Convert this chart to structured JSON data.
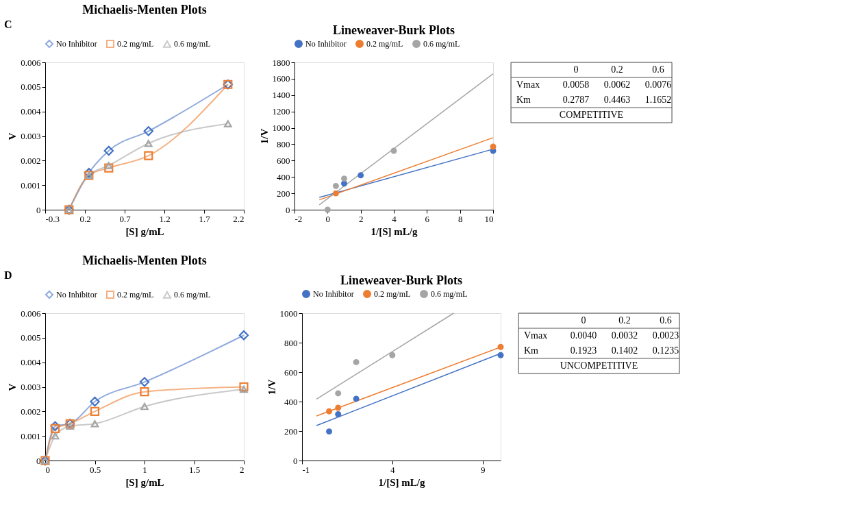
{
  "chart_data": [
    {
      "type": "line",
      "title": "Michaelis-Menten Plots",
      "xlabel": "[S] g/mL",
      "ylabel": "V",
      "annotations": [
        "C"
      ],
      "legend": "top",
      "grid": false,
      "x": [
        0,
        0.25,
        0.5,
        1,
        2
      ],
      "xlim": [
        -0.3,
        2.2
      ],
      "xticks": [
        -0.3,
        0.2,
        0.7,
        1.2,
        1.7,
        2.2
      ],
      "ylim": [
        0,
        0.006
      ],
      "yticks": [
        0,
        0.001,
        0.002,
        0.003,
        0.004,
        0.005,
        0.006
      ],
      "series": [
        {
          "name": "No Inhibitor",
          "color": "#4472c4",
          "marker": "diamond",
          "values": [
            0,
            0.0015,
            0.0024,
            0.0032,
            0.0051
          ]
        },
        {
          "name": "0.2 mg/mL",
          "color": "#ed7d31",
          "marker": "square",
          "values": [
            0,
            0.0014,
            0.0017,
            0.0022,
            0.0051
          ]
        },
        {
          "name": "0.6 mg/mL",
          "color": "#a5a5a5",
          "marker": "triangle",
          "values": [
            0,
            0.0014,
            0.0018,
            0.0027,
            0.0035
          ]
        }
      ]
    },
    {
      "type": "scatter",
      "title": "Lineweaver-Burk Plots",
      "xlabel": "1/[S] mL/g",
      "ylabel": "1/V",
      "legend": "top",
      "grid": false,
      "xlim": [
        -2,
        10
      ],
      "xticks": [
        -2,
        0,
        2,
        4,
        6,
        8,
        10
      ],
      "ylim": [
        0,
        1800
      ],
      "yticks": [
        0,
        200,
        400,
        600,
        800,
        1000,
        1200,
        1400,
        1600,
        1800
      ],
      "series": [
        {
          "name": "No Inhibitor",
          "color": "#4472c4",
          "marker": "circle",
          "x": [
            1,
            2,
            10
          ],
          "values": [
            320,
            420,
            720
          ]
        },
        {
          "name": "0.2 mg/mL",
          "color": "#ed7d31",
          "marker": "circle",
          "x": [
            0.5,
            10
          ],
          "values": [
            200,
            770
          ]
        },
        {
          "name": "0.6 mg/mL",
          "color": "#a5a5a5",
          "marker": "circle",
          "x": [
            0,
            0.5,
            1,
            4
          ],
          "values": [
            0,
            290,
            380,
            720
          ]
        },
        {
          "type": "line",
          "color": "#4472c4",
          "x": [
            -0.5,
            10
          ],
          "values": [
            150,
            740
          ]
        },
        {
          "type": "line",
          "color": "#ed7d31",
          "x": [
            -0.5,
            10
          ],
          "values": [
            120,
            880
          ]
        },
        {
          "type": "line",
          "color": "#a5a5a5",
          "x": [
            -0.5,
            10
          ],
          "values": [
            60,
            1660
          ]
        }
      ]
    },
    {
      "type": "other",
      "categories": [
        "0",
        "0.2",
        "0.6"
      ],
      "y_categories": [
        "Vmax",
        "Km"
      ],
      "cell_labels": [
        [
          "0.0058",
          "0.0062",
          "0.0076"
        ],
        [
          "0.2787",
          "0.4463",
          "1.1652"
        ]
      ],
      "annotations": [
        "COMPETITIVE"
      ]
    },
    {
      "type": "line",
      "title": "Michaelis-Menten Plots",
      "xlabel": "[S] g/mL",
      "ylabel": "V",
      "annotations": [
        "D"
      ],
      "legend": "top",
      "grid": false,
      "x": [
        0,
        0.1,
        0.25,
        0.5,
        1,
        2
      ],
      "xlim": [
        0,
        2
      ],
      "xticks": [
        0,
        0.5,
        1,
        1.5,
        2
      ],
      "ylim": [
        0,
        0.006
      ],
      "yticks": [
        0,
        0.001,
        0.002,
        0.003,
        0.004,
        0.005,
        0.006
      ],
      "series": [
        {
          "name": "No Inhibitor",
          "color": "#4472c4",
          "marker": "diamond",
          "values": [
            0,
            0.0014,
            0.0015,
            0.0024,
            0.0032,
            0.0051
          ]
        },
        {
          "name": "0.2 mg/mL",
          "color": "#ed7d31",
          "marker": "square",
          "values": [
            0,
            0.0013,
            0.0015,
            0.002,
            0.0028,
            0.003
          ]
        },
        {
          "name": "0.6 mg/mL",
          "color": "#a5a5a5",
          "marker": "triangle",
          "values": [
            0,
            0.001,
            0.0014,
            0.0015,
            0.0022,
            0.0029
          ]
        }
      ]
    },
    {
      "type": "scatter",
      "title": "Lineweaver-Burk Plots",
      "xlabel": "1/[S] mL/g",
      "ylabel": "1/V",
      "legend": "top",
      "grid": false,
      "xlim": [
        -1,
        10
      ],
      "xticks": [
        -1,
        4,
        9
      ],
      "ylim": [
        0,
        1000
      ],
      "yticks": [
        0,
        200,
        400,
        600,
        800,
        1000
      ],
      "series": [
        {
          "name": "No Inhibitor",
          "color": "#4472c4",
          "marker": "circle",
          "x": [
            0.5,
            1,
            2,
            10
          ],
          "values": [
            197,
            314,
            419,
            715
          ]
        },
        {
          "name": "0.2 mg/mL",
          "color": "#ed7d31",
          "marker": "circle",
          "x": [
            0.5,
            1,
            10
          ],
          "values": [
            334,
            358,
            771
          ]
        },
        {
          "name": "0.6 mg/mL",
          "color": "#a5a5a5",
          "marker": "circle",
          "x": [
            1,
            2,
            4
          ],
          "values": [
            456,
            668,
            715
          ]
        },
        {
          "type": "line",
          "color": "#4472c4",
          "x": [
            -0.2,
            10
          ],
          "values": [
            237,
            727
          ]
        },
        {
          "type": "line",
          "color": "#ed7d31",
          "x": [
            -0.2,
            10
          ],
          "values": [
            302,
            770
          ]
        },
        {
          "type": "line",
          "color": "#a5a5a5",
          "x": [
            -0.2,
            7.4
          ],
          "values": [
            417,
            1000
          ]
        }
      ]
    },
    {
      "type": "other",
      "categories": [
        "0",
        "0.2",
        "0.6"
      ],
      "y_categories": [
        "Vmax",
        "Km"
      ],
      "cell_labels": [
        [
          "0.0040",
          "0.0032",
          "0.0023"
        ],
        [
          "0.1923",
          "0.1402",
          "0.1235"
        ]
      ],
      "annotations": [
        "UNCOMPETITIVE"
      ]
    }
  ]
}
